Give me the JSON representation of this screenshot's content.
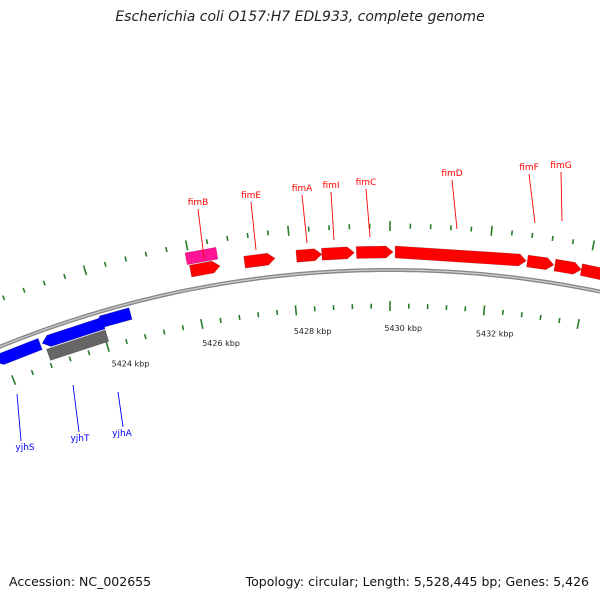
{
  "title": "Escherichia coli O157:H7 EDL933, complete genome",
  "footer": {
    "accession": "Accession: NC_002655",
    "stats": "Topology: circular; Length: 5,528,445 bp; Genes: 5,426"
  },
  "colors": {
    "forward_gene": "#ff0000",
    "forward_other": "#ff1493",
    "reverse_gene": "#0000ff",
    "reverse_other": "#666666",
    "ticks": "#2a7d2a",
    "backbone": "#999999"
  },
  "axis": {
    "unit": "kbp",
    "labels": [
      {
        "kbp": 5424,
        "text": "5424 kbp"
      },
      {
        "kbp": 5426,
        "text": "5426 kbp"
      },
      {
        "kbp": 5428,
        "text": "5428 kbp"
      },
      {
        "kbp": 5430,
        "text": "5430 kbp"
      },
      {
        "kbp": 5432,
        "text": "5432 kbp"
      }
    ]
  },
  "genes_forward": [
    {
      "name": "fimB"
    },
    {
      "name": "fimE"
    },
    {
      "name": "fimA"
    },
    {
      "name": "fimI"
    },
    {
      "name": "fimC"
    },
    {
      "name": "fimD"
    },
    {
      "name": "fimF"
    },
    {
      "name": "fimG"
    }
  ],
  "genes_reverse": [
    {
      "name": "yjhS"
    },
    {
      "name": "yjhT"
    },
    {
      "name": "yjhA"
    }
  ]
}
